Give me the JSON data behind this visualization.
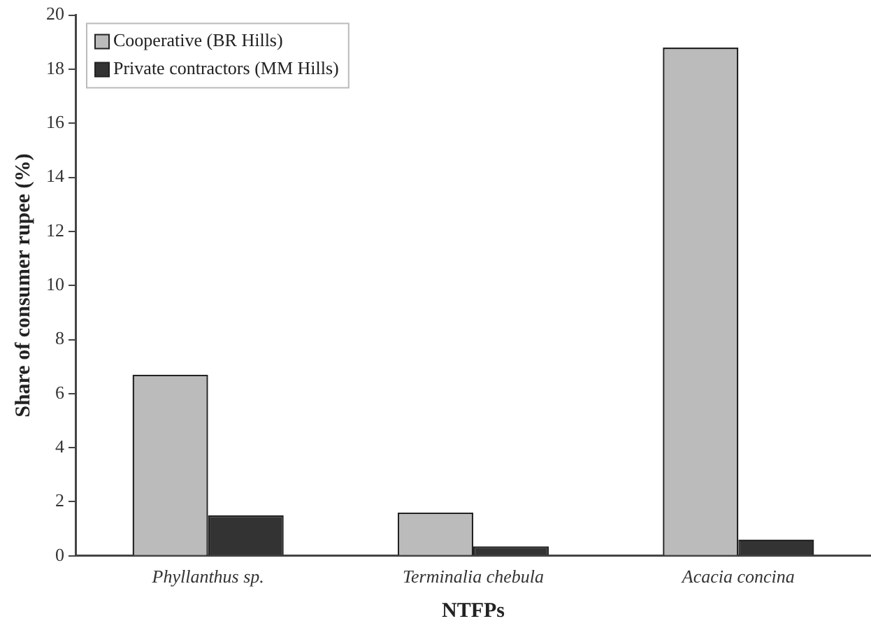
{
  "chart_data": {
    "type": "bar",
    "xlabel": "NTFPs",
    "ylabel": "Share of consumer rupee (%)",
    "categories": [
      "Phyllanthus sp.",
      "Terminalia chebula",
      "Acacia concina"
    ],
    "series": [
      {
        "name": "Cooperative (BR Hills)",
        "color": "#bbbbbb",
        "values": [
          6.7,
          1.6,
          18.8
        ]
      },
      {
        "name": "Private contractors (MM Hills)",
        "color": "#333333",
        "values": [
          1.5,
          0.35,
          0.6
        ]
      }
    ],
    "ylim": [
      0,
      20
    ],
    "yticks": [
      0,
      2,
      4,
      6,
      8,
      10,
      12,
      14,
      16,
      18,
      20
    ],
    "grid": false,
    "legend": "top left"
  }
}
